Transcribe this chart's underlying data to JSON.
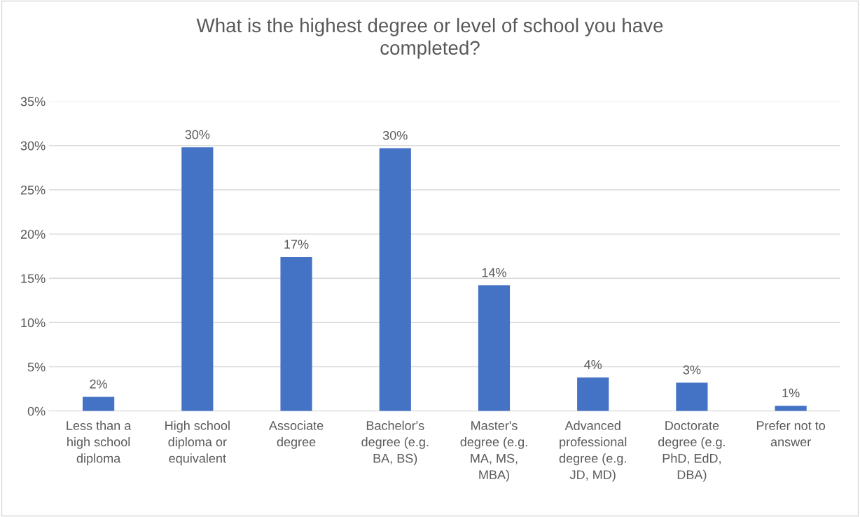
{
  "chart_data": {
    "type": "bar",
    "title": "What is the highest degree or level of school you have\ncompleted?",
    "categories": [
      "Less than a\nhigh school\ndiploma",
      "High school\ndiploma or\nequivalent",
      "Associate\ndegree",
      "Bachelor's\ndegree (e.g.\nBA, BS)",
      "Master's\ndegree (e.g.\nMA, MS,\nMBA)",
      "Advanced\nprofessional\ndegree (e.g.\nJD, MD)",
      "Doctorate\ndegree (e.g.\nPhD, EdD,\nDBA)",
      "Prefer not to\nanswer"
    ],
    "values": [
      1.6,
      29.8,
      17.4,
      29.7,
      14.2,
      3.8,
      3.2,
      0.6
    ],
    "value_labels": [
      "2%",
      "30%",
      "17%",
      "30%",
      "14%",
      "4%",
      "3%",
      "1%"
    ],
    "color": "#4472c4",
    "ylim": [
      0,
      35
    ],
    "yticks": [
      {
        "value": 0,
        "label": "0%"
      },
      {
        "value": 5,
        "label": "5%"
      },
      {
        "value": 10,
        "label": "10%"
      },
      {
        "value": 15,
        "label": "15%"
      },
      {
        "value": 20,
        "label": "20%"
      },
      {
        "value": 25,
        "label": "25%"
      },
      {
        "value": 30,
        "label": "30%"
      },
      {
        "value": 35,
        "label": "35%"
      }
    ],
    "grid": "y",
    "legend": false
  }
}
